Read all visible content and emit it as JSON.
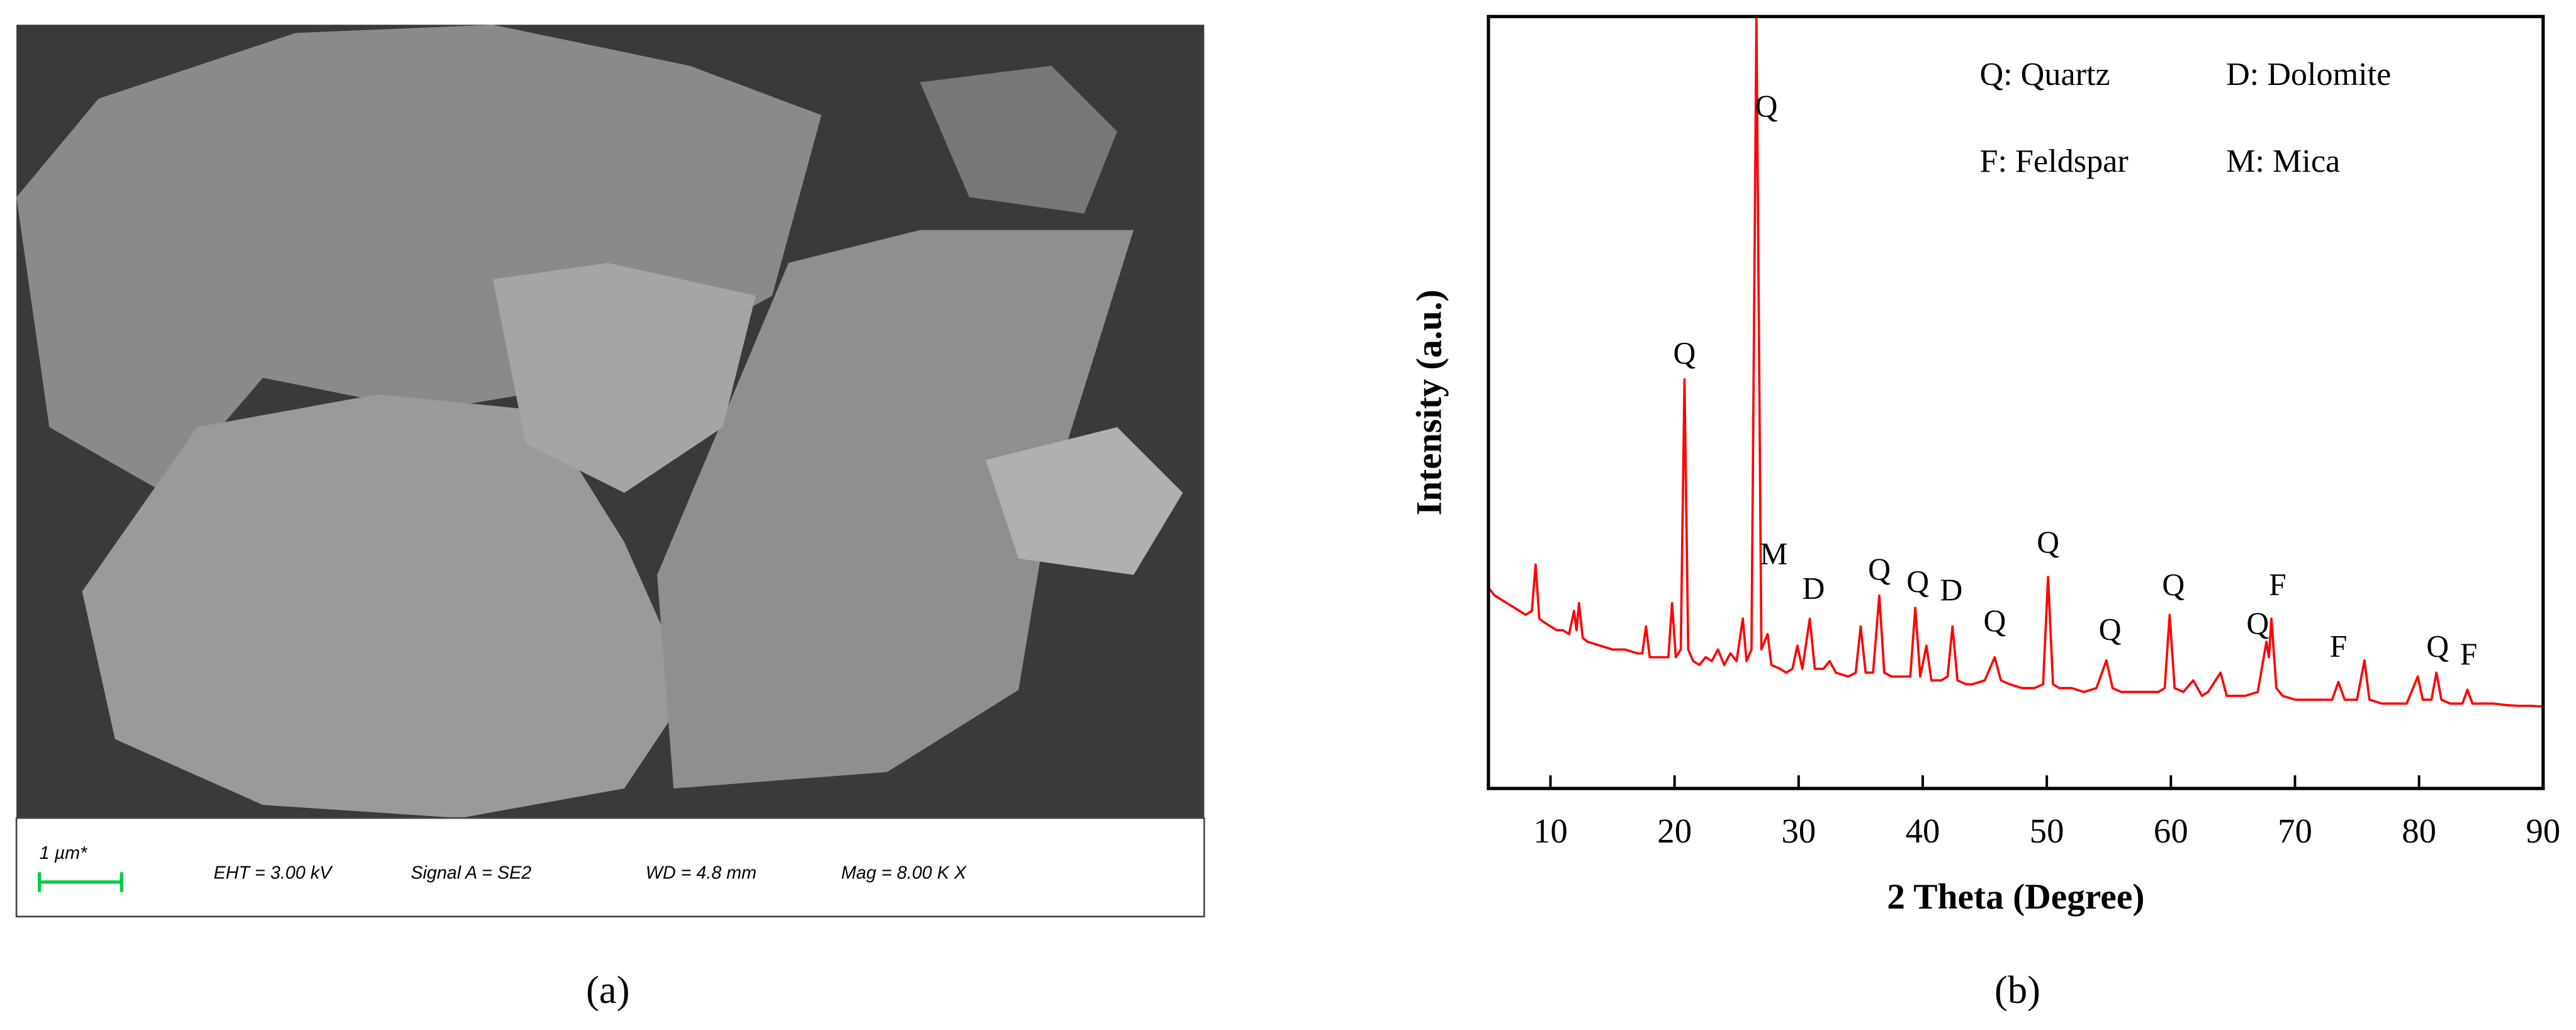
{
  "figure_a": {
    "scale_bar": "1 µm*",
    "info": [
      "EHT = 3.00 kV",
      "Signal A = SE2",
      "WD = 4.8 mm",
      "Mag = 8.00 K X"
    ],
    "caption": "(a)"
  },
  "chart_data": {
    "type": "line",
    "caption": "(b)",
    "xlabel": "2 Theta (Degree)",
    "ylabel": "Intensity (a.u.)",
    "color": "#ff0000",
    "xlim": [
      5,
      90
    ],
    "ylim": [
      0,
      100
    ],
    "xticks": [
      10,
      20,
      30,
      40,
      50,
      60,
      70,
      80,
      90
    ],
    "legend": [
      "Q: Quartz",
      "D: Dolomite",
      "F: Feldspar",
      "M: Mica"
    ],
    "x": [
      5,
      5.5,
      6,
      6.5,
      7,
      7.5,
      8,
      8.5,
      8.8,
      9.1,
      9.5,
      10,
      10.5,
      11,
      11.5,
      11.9,
      12.1,
      12.3,
      12.6,
      13,
      14,
      15,
      16,
      17,
      17.4,
      17.7,
      18,
      19,
      19.5,
      19.8,
      20.1,
      20.5,
      20.8,
      21.1,
      21.5,
      22,
      22.5,
      23,
      23.5,
      24,
      24.5,
      25,
      25.5,
      25.8,
      26.2,
      26.6,
      27,
      27.5,
      27.8,
      28.5,
      29,
      29.5,
      29.9,
      30.3,
      30.9,
      31.3,
      32,
      32.5,
      33,
      34,
      34.6,
      35,
      35.4,
      36,
      36.5,
      36.9,
      37.5,
      38,
      38.5,
      39,
      39.4,
      39.8,
      40.3,
      40.7,
      41.5,
      42,
      42.4,
      42.8,
      43.5,
      44,
      45,
      45.8,
      46.3,
      47,
      48,
      49,
      49.7,
      50.1,
      50.5,
      51,
      52,
      53,
      54,
      54.8,
      55.3,
      56,
      57,
      58,
      59,
      59.5,
      59.9,
      60.3,
      61,
      61.8,
      62.5,
      63,
      64,
      64.5,
      65,
      66,
      67,
      67.7,
      67.9,
      68.1,
      68.5,
      69,
      70,
      71,
      72,
      73,
      73.5,
      74,
      75,
      75.6,
      76,
      77,
      78,
      79,
      79.9,
      80.3,
      81,
      81.4,
      81.8,
      82.5,
      83.5,
      83.9,
      84.3,
      85,
      86,
      87,
      88,
      89,
      90
    ],
    "values": [
      26,
      25,
      24.5,
      24,
      23.5,
      23,
      22.5,
      23,
      29,
      22,
      21.5,
      21,
      20.5,
      20.5,
      20,
      23,
      20.5,
      24,
      19.5,
      19,
      18.5,
      18,
      18,
      17.5,
      17.5,
      21,
      17,
      17,
      17,
      24,
      17,
      18,
      53,
      18,
      16.5,
      16,
      17,
      16.5,
      18,
      16,
      17.5,
      16.5,
      22,
      16.5,
      18,
      100,
      18,
      20,
      16,
      15.5,
      15,
      15.5,
      18.5,
      15.5,
      22,
      15.5,
      15.5,
      16.5,
      15,
      14.5,
      15,
      21,
      15,
      15,
      25,
      15,
      14.5,
      14.5,
      14.5,
      14.5,
      23.4,
      14.5,
      18.5,
      14,
      14,
      14.5,
      21,
      14,
      13.5,
      13.5,
      14,
      17,
      14,
      13.5,
      13,
      13,
      13.5,
      27.4,
      13.5,
      13,
      13,
      12.5,
      13,
      16.6,
      13,
      12.5,
      12.5,
      12.5,
      12.5,
      13,
      22.5,
      13,
      12.5,
      14,
      12,
      12.5,
      15,
      12,
      12,
      12,
      12.5,
      19,
      17,
      22,
      13,
      12,
      11.5,
      11.5,
      11.5,
      11.5,
      13.8,
      11.5,
      11.5,
      16.6,
      11.5,
      11,
      11,
      11,
      14.5,
      11.5,
      11.5,
      15,
      11.5,
      11,
      11,
      12.8,
      11,
      11,
      11,
      10.8,
      10.7,
      10.7,
      10.6
    ],
    "annotations": [
      {
        "label": "Q",
        "x": 27.4,
        "y": 88
      },
      {
        "label": "Q",
        "x": 20.8,
        "y": 56
      },
      {
        "label": "M",
        "x": 28,
        "y": 30
      },
      {
        "label": "D",
        "x": 31.2,
        "y": 25.5
      },
      {
        "label": "Q",
        "x": 36.5,
        "y": 28
      },
      {
        "label": "Q",
        "x": 39.6,
        "y": 26.4
      },
      {
        "label": "D",
        "x": 42.3,
        "y": 25.3
      },
      {
        "label": "Q",
        "x": 45.8,
        "y": 21.3
      },
      {
        "label": "Q",
        "x": 50.1,
        "y": 31.5
      },
      {
        "label": "Q",
        "x": 55.1,
        "y": 20.2
      },
      {
        "label": "Q",
        "x": 60.2,
        "y": 26
      },
      {
        "label": "Q",
        "x": 67,
        "y": 21
      },
      {
        "label": "F",
        "x": 68.6,
        "y": 26
      },
      {
        "label": "F",
        "x": 73.5,
        "y": 18
      },
      {
        "label": "Q",
        "x": 81.5,
        "y": 18
      },
      {
        "label": "F",
        "x": 84,
        "y": 17
      }
    ]
  }
}
